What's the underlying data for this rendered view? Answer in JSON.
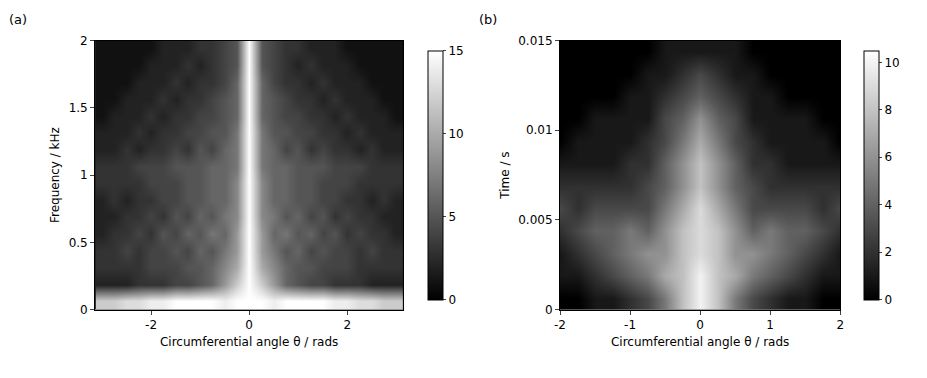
{
  "chart_data": [
    {
      "type": "heatmap",
      "title": "(a)",
      "x_label": "Circumferential angle θ / rads",
      "y_label": "Frequency / kHz",
      "x": [
        -3,
        -2.75,
        -2.5,
        -2.25,
        -2,
        -1.75,
        -1.5,
        -1.25,
        -1,
        -0.75,
        -0.5,
        -0.25,
        0,
        0.25,
        0.5,
        0.75,
        1,
        1.25,
        1.5,
        1.75,
        2,
        2.25,
        2.5,
        2.75,
        3
      ],
      "y": [
        0.0625,
        0.1875,
        0.3125,
        0.4375,
        0.5625,
        0.6875,
        0.8125,
        0.9375,
        1.0625,
        1.1875,
        1.3125,
        1.4375,
        1.5625,
        1.6875,
        1.8125,
        1.9375
      ],
      "z": [
        [
          12,
          12,
          13,
          13,
          14,
          14,
          15,
          15,
          15,
          15,
          14,
          15,
          15,
          15,
          14,
          15,
          15,
          15,
          15,
          14,
          14,
          13,
          13,
          12,
          12
        ],
        [
          2,
          2,
          2,
          3,
          3,
          3,
          4,
          4,
          5,
          6,
          9,
          12,
          15,
          12,
          9,
          6,
          5,
          4,
          4,
          3,
          3,
          3,
          2,
          2,
          2
        ],
        [
          3,
          3,
          3,
          3,
          4,
          4,
          4,
          5,
          5,
          6,
          8,
          10,
          15,
          10,
          8,
          6,
          5,
          5,
          4,
          4,
          4,
          3,
          3,
          3,
          3
        ],
        [
          3,
          3,
          4,
          3,
          4,
          4,
          5,
          4,
          6,
          5,
          7,
          9,
          15,
          9,
          7,
          5,
          6,
          4,
          5,
          4,
          4,
          3,
          4,
          3,
          3
        ],
        [
          2,
          3,
          3,
          4,
          3,
          5,
          4,
          6,
          5,
          7,
          6,
          9,
          15,
          9,
          6,
          7,
          5,
          6,
          4,
          5,
          3,
          4,
          3,
          3,
          2
        ],
        [
          2,
          2,
          3,
          3,
          4,
          3,
          5,
          4,
          6,
          5,
          7,
          8,
          15,
          8,
          7,
          5,
          6,
          4,
          5,
          3,
          4,
          3,
          3,
          2,
          2
        ],
        [
          2,
          3,
          2,
          3,
          3,
          4,
          4,
          5,
          5,
          6,
          6,
          8,
          15,
          8,
          6,
          6,
          5,
          5,
          4,
          4,
          3,
          3,
          2,
          3,
          2
        ],
        [
          3,
          3,
          3,
          3,
          4,
          4,
          4,
          5,
          5,
          6,
          6,
          8,
          15,
          8,
          6,
          6,
          5,
          5,
          4,
          4,
          4,
          3,
          3,
          3,
          3
        ],
        [
          3,
          3,
          3,
          4,
          4,
          4,
          5,
          5,
          5,
          6,
          6,
          7,
          15,
          7,
          6,
          6,
          5,
          5,
          5,
          4,
          4,
          4,
          3,
          3,
          3
        ],
        [
          2,
          2,
          3,
          2,
          3,
          3,
          4,
          3,
          5,
          4,
          6,
          7,
          15,
          7,
          6,
          4,
          5,
          3,
          4,
          3,
          3,
          2,
          3,
          2,
          2
        ],
        [
          2,
          2,
          2,
          3,
          2,
          3,
          3,
          4,
          4,
          5,
          5,
          7,
          15,
          7,
          5,
          5,
          4,
          4,
          3,
          3,
          2,
          3,
          2,
          2,
          2
        ],
        [
          1,
          2,
          2,
          2,
          3,
          2,
          3,
          3,
          4,
          4,
          5,
          6,
          15,
          6,
          5,
          4,
          4,
          3,
          3,
          2,
          3,
          2,
          2,
          2,
          1
        ],
        [
          1,
          1,
          2,
          2,
          2,
          3,
          2,
          3,
          3,
          4,
          5,
          6,
          15,
          6,
          5,
          4,
          3,
          3,
          2,
          3,
          2,
          2,
          2,
          1,
          1
        ],
        [
          1,
          1,
          1,
          2,
          2,
          2,
          3,
          2,
          3,
          3,
          4,
          6,
          15,
          6,
          4,
          3,
          3,
          2,
          3,
          2,
          2,
          2,
          1,
          1,
          1
        ],
        [
          1,
          1,
          1,
          1,
          2,
          2,
          2,
          3,
          2,
          3,
          4,
          5,
          15,
          5,
          4,
          3,
          2,
          3,
          2,
          2,
          2,
          1,
          1,
          1,
          1
        ],
        [
          1,
          1,
          1,
          1,
          1,
          2,
          2,
          2,
          3,
          3,
          4,
          5,
          15,
          5,
          4,
          3,
          3,
          2,
          2,
          2,
          1,
          1,
          1,
          1,
          1
        ]
      ],
      "xlim": [
        -3.14,
        3.14
      ],
      "xticks": [
        -2,
        0,
        2
      ],
      "ylim": [
        0,
        2
      ],
      "yticks": [
        0,
        0.5,
        1,
        1.5,
        2
      ],
      "colorbar_range": [
        0,
        15
      ],
      "colorbar_ticks": [
        0,
        5,
        10,
        15
      ],
      "grid": false
    },
    {
      "type": "heatmap",
      "title": "(b)",
      "x_label": "Circumferential angle θ / rads",
      "y_label": "Time / s",
      "x": [
        -2,
        -1.75,
        -1.5,
        -1.25,
        -1,
        -0.75,
        -0.5,
        -0.25,
        0,
        0.25,
        0.5,
        0.75,
        1,
        1.25,
        1.5,
        1.75,
        2
      ],
      "y": [
        0.000625,
        0.001875,
        0.003125,
        0.004375,
        0.005625,
        0.006875,
        0.008125,
        0.009375,
        0.010625,
        0.011875,
        0.013125,
        0.014375
      ],
      "z": [
        [
          0,
          0,
          1,
          1,
          2,
          3,
          5,
          8,
          10,
          8,
          5,
          3,
          2,
          1,
          1,
          0,
          0
        ],
        [
          1,
          1,
          2,
          3,
          4,
          5,
          7,
          8,
          10,
          8,
          7,
          5,
          4,
          3,
          2,
          1,
          1
        ],
        [
          1,
          2,
          3,
          4,
          5,
          6,
          6,
          8,
          9,
          8,
          6,
          6,
          5,
          4,
          3,
          2,
          1
        ],
        [
          2,
          3,
          4,
          4,
          5,
          4,
          6,
          8,
          9,
          8,
          6,
          4,
          5,
          4,
          4,
          3,
          2
        ],
        [
          3,
          2,
          3,
          3,
          3,
          3,
          5,
          7,
          9,
          7,
          5,
          3,
          3,
          3,
          3,
          2,
          3
        ],
        [
          2,
          2,
          2,
          2,
          2,
          3,
          4,
          6,
          8,
          6,
          4,
          3,
          2,
          2,
          2,
          2,
          2
        ],
        [
          1,
          1,
          1,
          1,
          2,
          2,
          4,
          6,
          8,
          6,
          4,
          2,
          2,
          1,
          1,
          1,
          1
        ],
        [
          0,
          1,
          1,
          1,
          1,
          2,
          3,
          5,
          7,
          5,
          3,
          2,
          1,
          1,
          1,
          1,
          0
        ],
        [
          0,
          0,
          1,
          1,
          1,
          1,
          3,
          4,
          6,
          4,
          3,
          1,
          1,
          1,
          1,
          0,
          0
        ],
        [
          0,
          0,
          0,
          0,
          1,
          1,
          2,
          3,
          4,
          3,
          2,
          1,
          1,
          0,
          0,
          0,
          0
        ],
        [
          0,
          0,
          0,
          0,
          0,
          1,
          1,
          2,
          3,
          2,
          1,
          1,
          0,
          0,
          0,
          0,
          0
        ],
        [
          0,
          0,
          0,
          0,
          0,
          0,
          1,
          1,
          1,
          1,
          1,
          0,
          0,
          0,
          0,
          0,
          0
        ]
      ],
      "xlim": [
        -2,
        2
      ],
      "xticks": [
        -2,
        -1,
        0,
        1,
        2
      ],
      "ylim": [
        0,
        0.015
      ],
      "yticks": [
        0,
        0.005,
        0.01,
        0.015
      ],
      "colorbar_range": [
        0,
        10.5
      ],
      "colorbar_ticks": [
        0,
        2,
        4,
        6,
        8,
        10
      ],
      "grid": false
    }
  ]
}
